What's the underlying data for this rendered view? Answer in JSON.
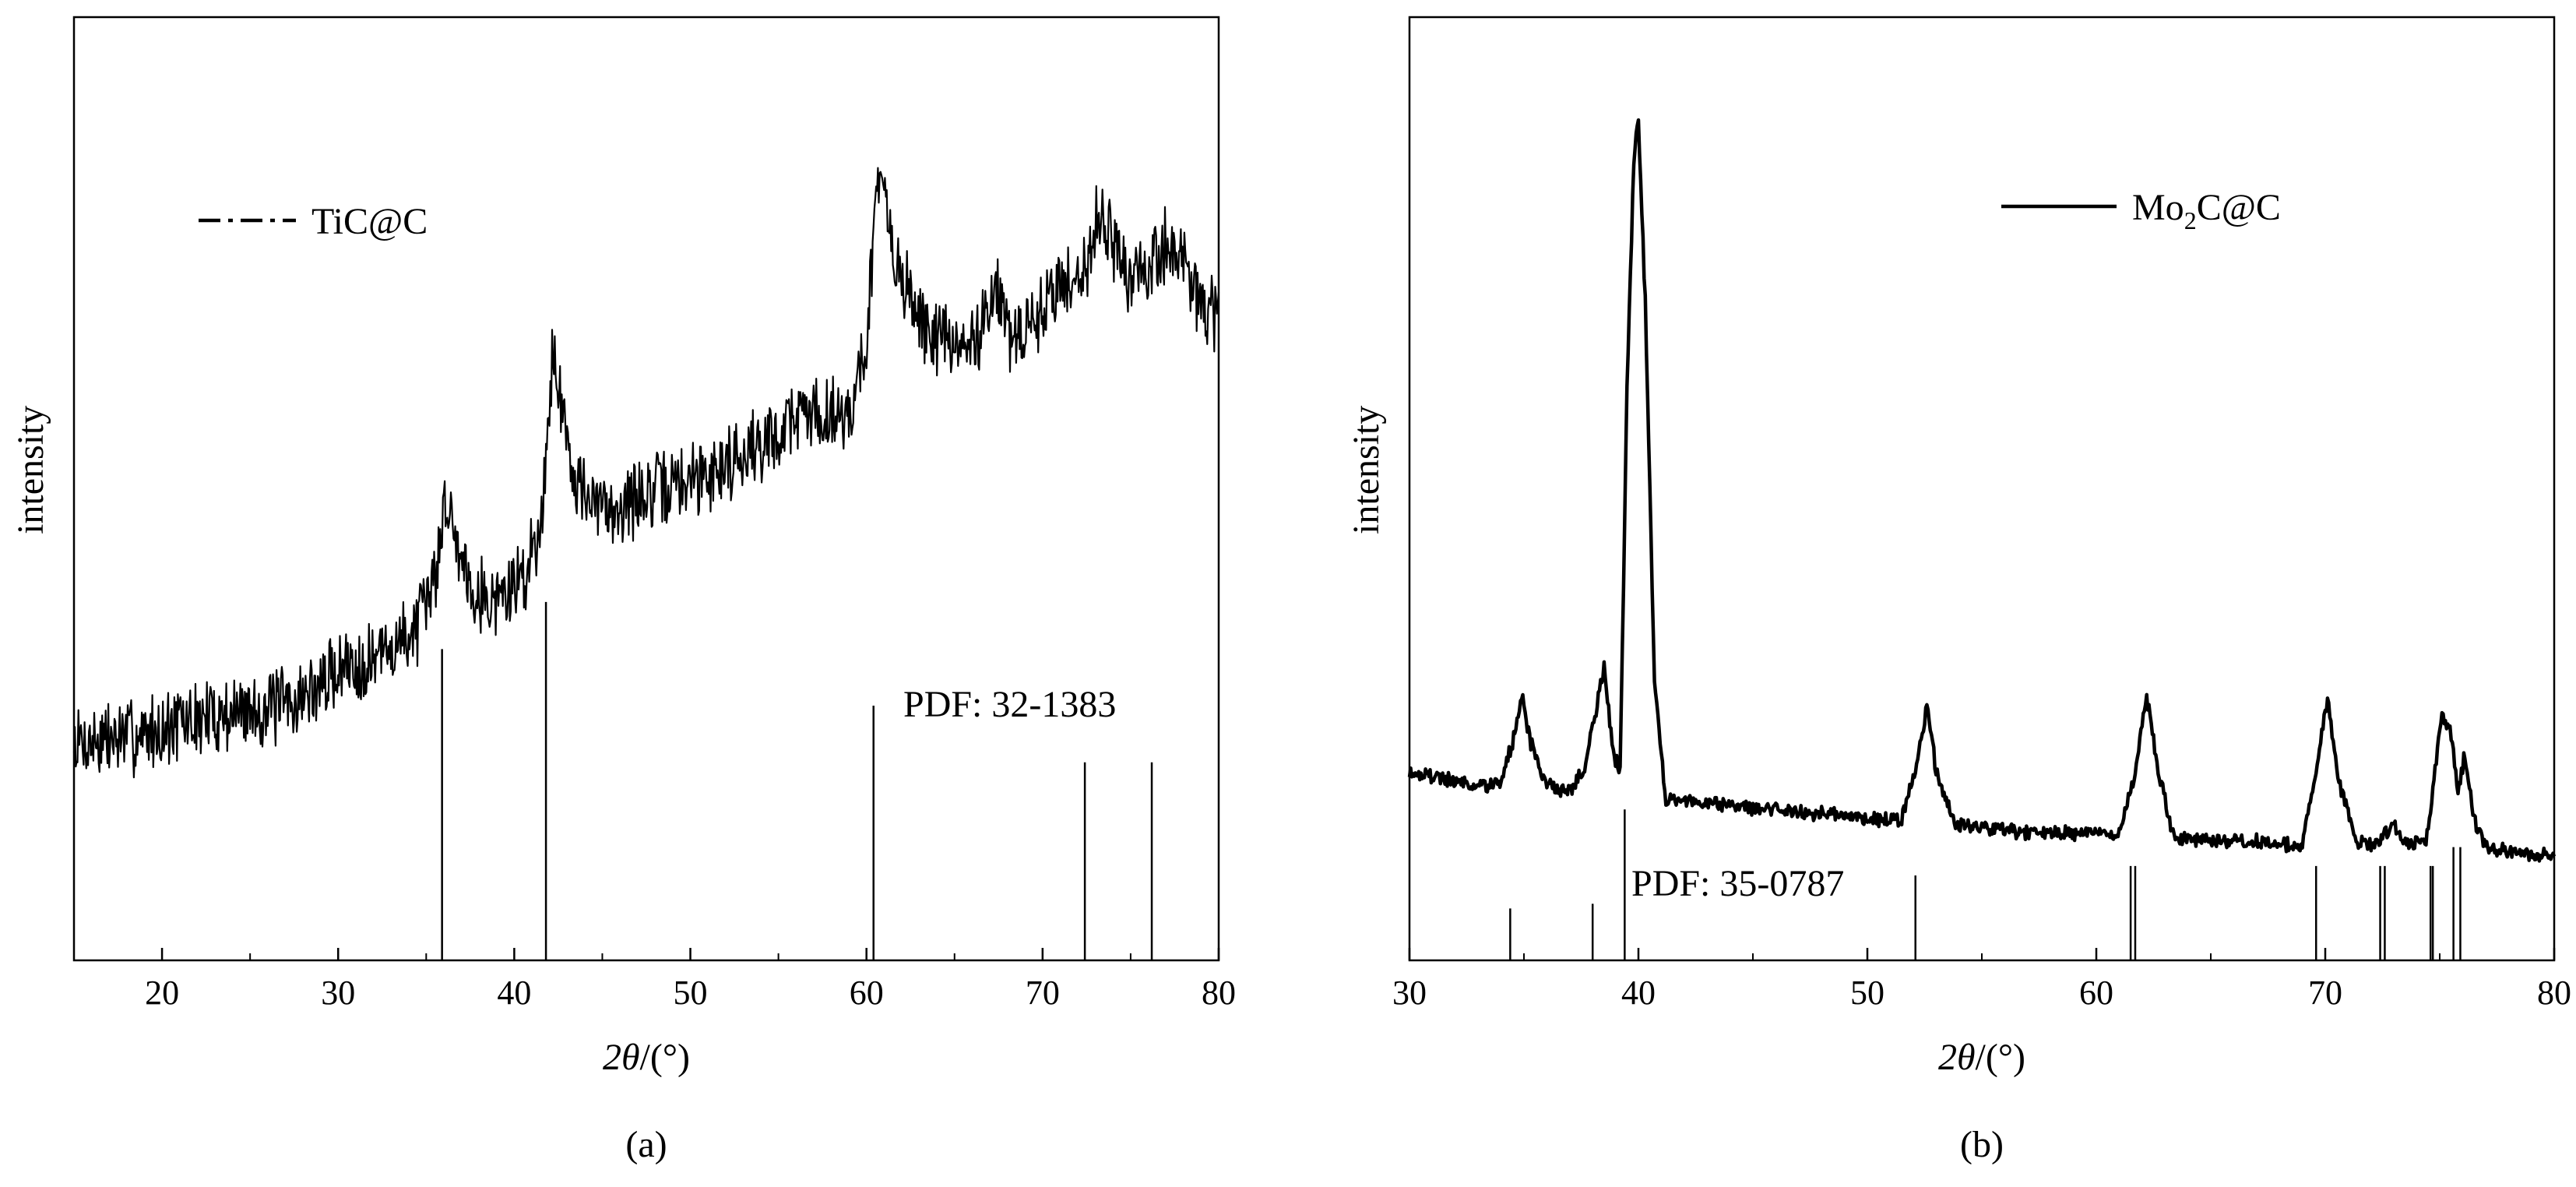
{
  "chart_data": [
    {
      "type": "line",
      "panel_label": "(a)",
      "xlabel_var": "2θ",
      "xlabel_unit": "/(°)",
      "ylabel": "intensity",
      "xlim": [
        15,
        80
      ],
      "ylim": [
        0,
        100
      ],
      "xticks": [
        20,
        30,
        40,
        50,
        60,
        70,
        80
      ],
      "legend": {
        "position": "top-left",
        "label": "TiC@C",
        "line_style": "dash-dot"
      },
      "reference_label": "PDF: 32-1383",
      "reference_peaks": [
        {
          "x": 35.9,
          "h": 33
        },
        {
          "x": 41.8,
          "h": 38
        },
        {
          "x": 60.4,
          "h": 27
        },
        {
          "x": 72.4,
          "h": 21
        },
        {
          "x": 76.2,
          "h": 21
        }
      ],
      "series": [
        {
          "name": "TiC@C",
          "color": "#000000",
          "noise": 3.6,
          "x": [
            15,
            17,
            19,
            21,
            23,
            25,
            27,
            29,
            30,
            31,
            32,
            33,
            34,
            35,
            35.6,
            36.1,
            36.8,
            37.6,
            38.6,
            39.6,
            40.6,
            41.3,
            41.8,
            42.2,
            42.7,
            43.4,
            44.3,
            45.5,
            47,
            48.5,
            50,
            51.5,
            53,
            54.5,
            56,
            57.5,
            58.5,
            59.3,
            60,
            60.5,
            60.9,
            61.3,
            62,
            63,
            64,
            65,
            66,
            67,
            67.4,
            68,
            69,
            70,
            71,
            72,
            72.8,
            73.3,
            74,
            75,
            76,
            77,
            78,
            79,
            80
          ],
          "y": [
            23,
            23.5,
            24,
            25,
            26,
            26.5,
            27,
            29,
            31,
            31.5,
            32,
            33,
            34.5,
            37,
            42,
            49,
            44,
            40,
            38,
            39,
            41,
            45,
            52,
            66,
            58,
            52,
            48,
            48,
            49,
            50,
            51,
            52,
            54,
            55,
            58,
            58,
            58,
            59,
            66,
            80,
            82,
            77,
            72,
            68,
            66,
            65,
            65,
            70,
            72,
            66,
            66,
            69,
            72,
            72,
            76,
            80,
            76,
            72,
            73,
            76,
            74,
            70,
            67
          ]
        }
      ]
    },
    {
      "type": "line",
      "panel_label": "(b)",
      "xlabel_var": "2θ",
      "xlabel_unit": "/(°)",
      "ylabel": "intensity",
      "xlim": [
        30,
        80
      ],
      "ylim": [
        0,
        100
      ],
      "xticks": [
        30,
        40,
        50,
        60,
        70,
        80
      ],
      "legend": {
        "position": "top-right",
        "label_main": "Mo",
        "label_sub": "2",
        "label_rest": "C@C",
        "line_style": "solid"
      },
      "reference_label": "PDF: 35-0787",
      "reference_peaks": [
        {
          "x": 34.4,
          "h": 5.5
        },
        {
          "x": 38.0,
          "h": 6
        },
        {
          "x": 39.4,
          "h": 16
        },
        {
          "x": 52.1,
          "h": 9
        },
        {
          "x": 61.5,
          "h": 10
        },
        {
          "x": 61.7,
          "h": 10
        },
        {
          "x": 69.6,
          "h": 10
        },
        {
          "x": 72.4,
          "h": 10
        },
        {
          "x": 72.6,
          "h": 10
        },
        {
          "x": 74.6,
          "h": 10
        },
        {
          "x": 74.7,
          "h": 10
        },
        {
          "x": 75.6,
          "h": 12
        },
        {
          "x": 75.9,
          "h": 12
        }
      ],
      "series": [
        {
          "name": "Mo₂C@C",
          "color": "#000000",
          "noise": 0.7,
          "x": [
            30,
            31,
            32,
            33,
            33.9,
            34.5,
            34.9,
            35.3,
            36,
            37,
            37.6,
            38.1,
            38.5,
            38.9,
            39.2,
            39.5,
            39.8,
            40.0,
            40.3,
            40.7,
            41.2,
            42,
            44,
            46,
            48,
            50,
            51.5,
            52.2,
            52.6,
            53.0,
            53.8,
            55,
            57,
            59,
            61,
            61.7,
            62.2,
            62.7,
            63.4,
            65,
            67,
            69,
            69.6,
            70.1,
            70.6,
            71.4,
            72.3,
            72.9,
            73.5,
            74.4,
            75.1,
            75.5,
            75.8,
            76.1,
            76.5,
            77,
            78,
            79,
            80
          ],
          "y": [
            20,
            19.5,
            19,
            18.5,
            18.5,
            23,
            28,
            23,
            18.5,
            18,
            20,
            26,
            31,
            22,
            20,
            60,
            85,
            89,
            70,
            30,
            17,
            17,
            16.5,
            16,
            15.5,
            15,
            15,
            21,
            27,
            20,
            14.5,
            14,
            13.5,
            13.5,
            13.5,
            20,
            28,
            20,
            13,
            12.5,
            12.5,
            12.2,
            20,
            28,
            19,
            12.5,
            12.5,
            14.5,
            12.5,
            12.5,
            26,
            24,
            18,
            22,
            15,
            12,
            11.5,
            11.2,
            11
          ]
        }
      ]
    }
  ]
}
